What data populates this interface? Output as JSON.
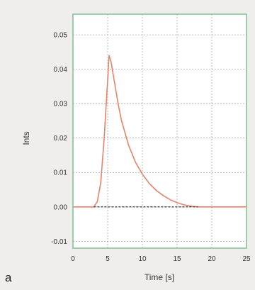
{
  "panel_label": "a",
  "colors": {
    "background": "#efeeec",
    "plot_background": "#ffffff",
    "frame": "#7fbf8f",
    "grid": "#aaaaaa",
    "curve": "#e8826a",
    "baseline": "#222222"
  },
  "chart_data": {
    "type": "line",
    "title": "",
    "xlabel": "Time [s]",
    "ylabel": "Ints",
    "xlim": [
      0,
      25
    ],
    "ylim": [
      -0.012,
      0.056
    ],
    "x_ticks": [
      "0",
      "5",
      "10",
      "15",
      "20",
      "25"
    ],
    "y_ticks": [
      "-0.01",
      "0.00",
      "0.01",
      "0.02",
      "0.03",
      "0.04",
      "0.05"
    ],
    "grid": true,
    "legend": "none",
    "series": [
      {
        "x": [
          0,
          2,
          3,
          3.5,
          4,
          4.5,
          5,
          5.2,
          5.5,
          6,
          6.5,
          7,
          8,
          9,
          10,
          11,
          12,
          13,
          14,
          15,
          16,
          17,
          18,
          25
        ],
        "y": [
          0,
          0,
          0,
          0.0015,
          0.007,
          0.02,
          0.037,
          0.044,
          0.042,
          0.036,
          0.03,
          0.025,
          0.018,
          0.013,
          0.0095,
          0.0068,
          0.0048,
          0.0033,
          0.0021,
          0.0012,
          0.0006,
          0.0002,
          0,
          0
        ],
        "style": "solid"
      },
      {
        "x": [
          3,
          18
        ],
        "y": [
          0,
          0
        ],
        "style": "dashed"
      }
    ]
  }
}
